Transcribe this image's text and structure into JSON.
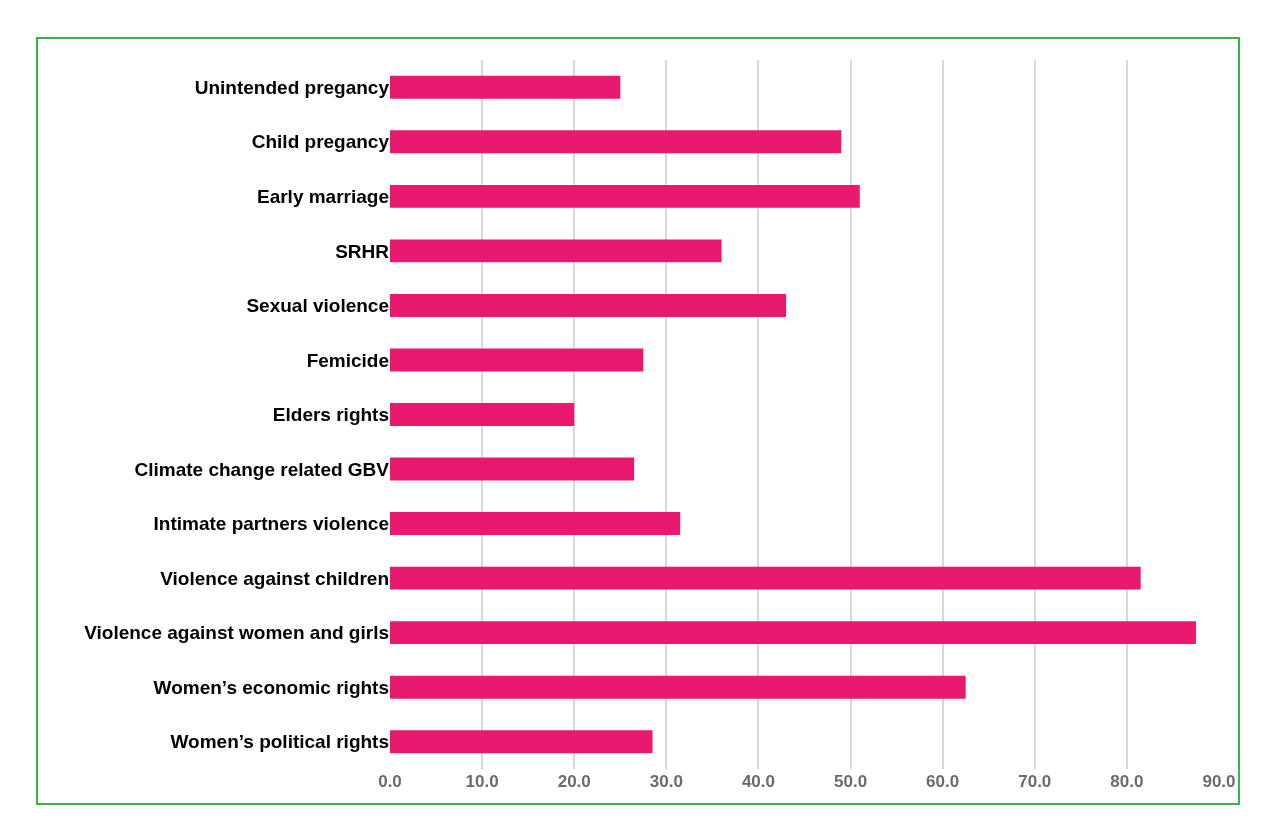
{
  "chart_data": {
    "type": "bar",
    "orientation": "horizontal",
    "categories": [
      "Unintended pregancy",
      "Child pregancy",
      "Early marriage",
      "SRHR",
      "Sexual violence",
      "Femicide",
      "Elders rights",
      "Climate change related GBV",
      "Intimate partners violence",
      "Violence against children",
      "Violence against women and girls",
      "Women’s economic rights",
      "Women’s political rights"
    ],
    "values": [
      25,
      49,
      51,
      36,
      43,
      27.5,
      20,
      26.5,
      31.5,
      81.5,
      87.5,
      62.5,
      28.5
    ],
    "color": "#e8196f",
    "xlim": [
      0,
      90
    ],
    "xticks": [
      {
        "value": 0,
        "label": "0.0"
      },
      {
        "value": 10,
        "label": "10.0"
      },
      {
        "value": 20,
        "label": "20.0"
      },
      {
        "value": 30,
        "label": "30.0"
      },
      {
        "value": 40,
        "label": "40.0"
      },
      {
        "value": 50,
        "label": "50.0"
      },
      {
        "value": 60,
        "label": "60.0"
      },
      {
        "value": 70,
        "label": "70.0"
      },
      {
        "value": 80,
        "label": "80.0"
      },
      {
        "value": 90,
        "label": "90.0"
      }
    ],
    "grid": "x",
    "legend": false
  }
}
